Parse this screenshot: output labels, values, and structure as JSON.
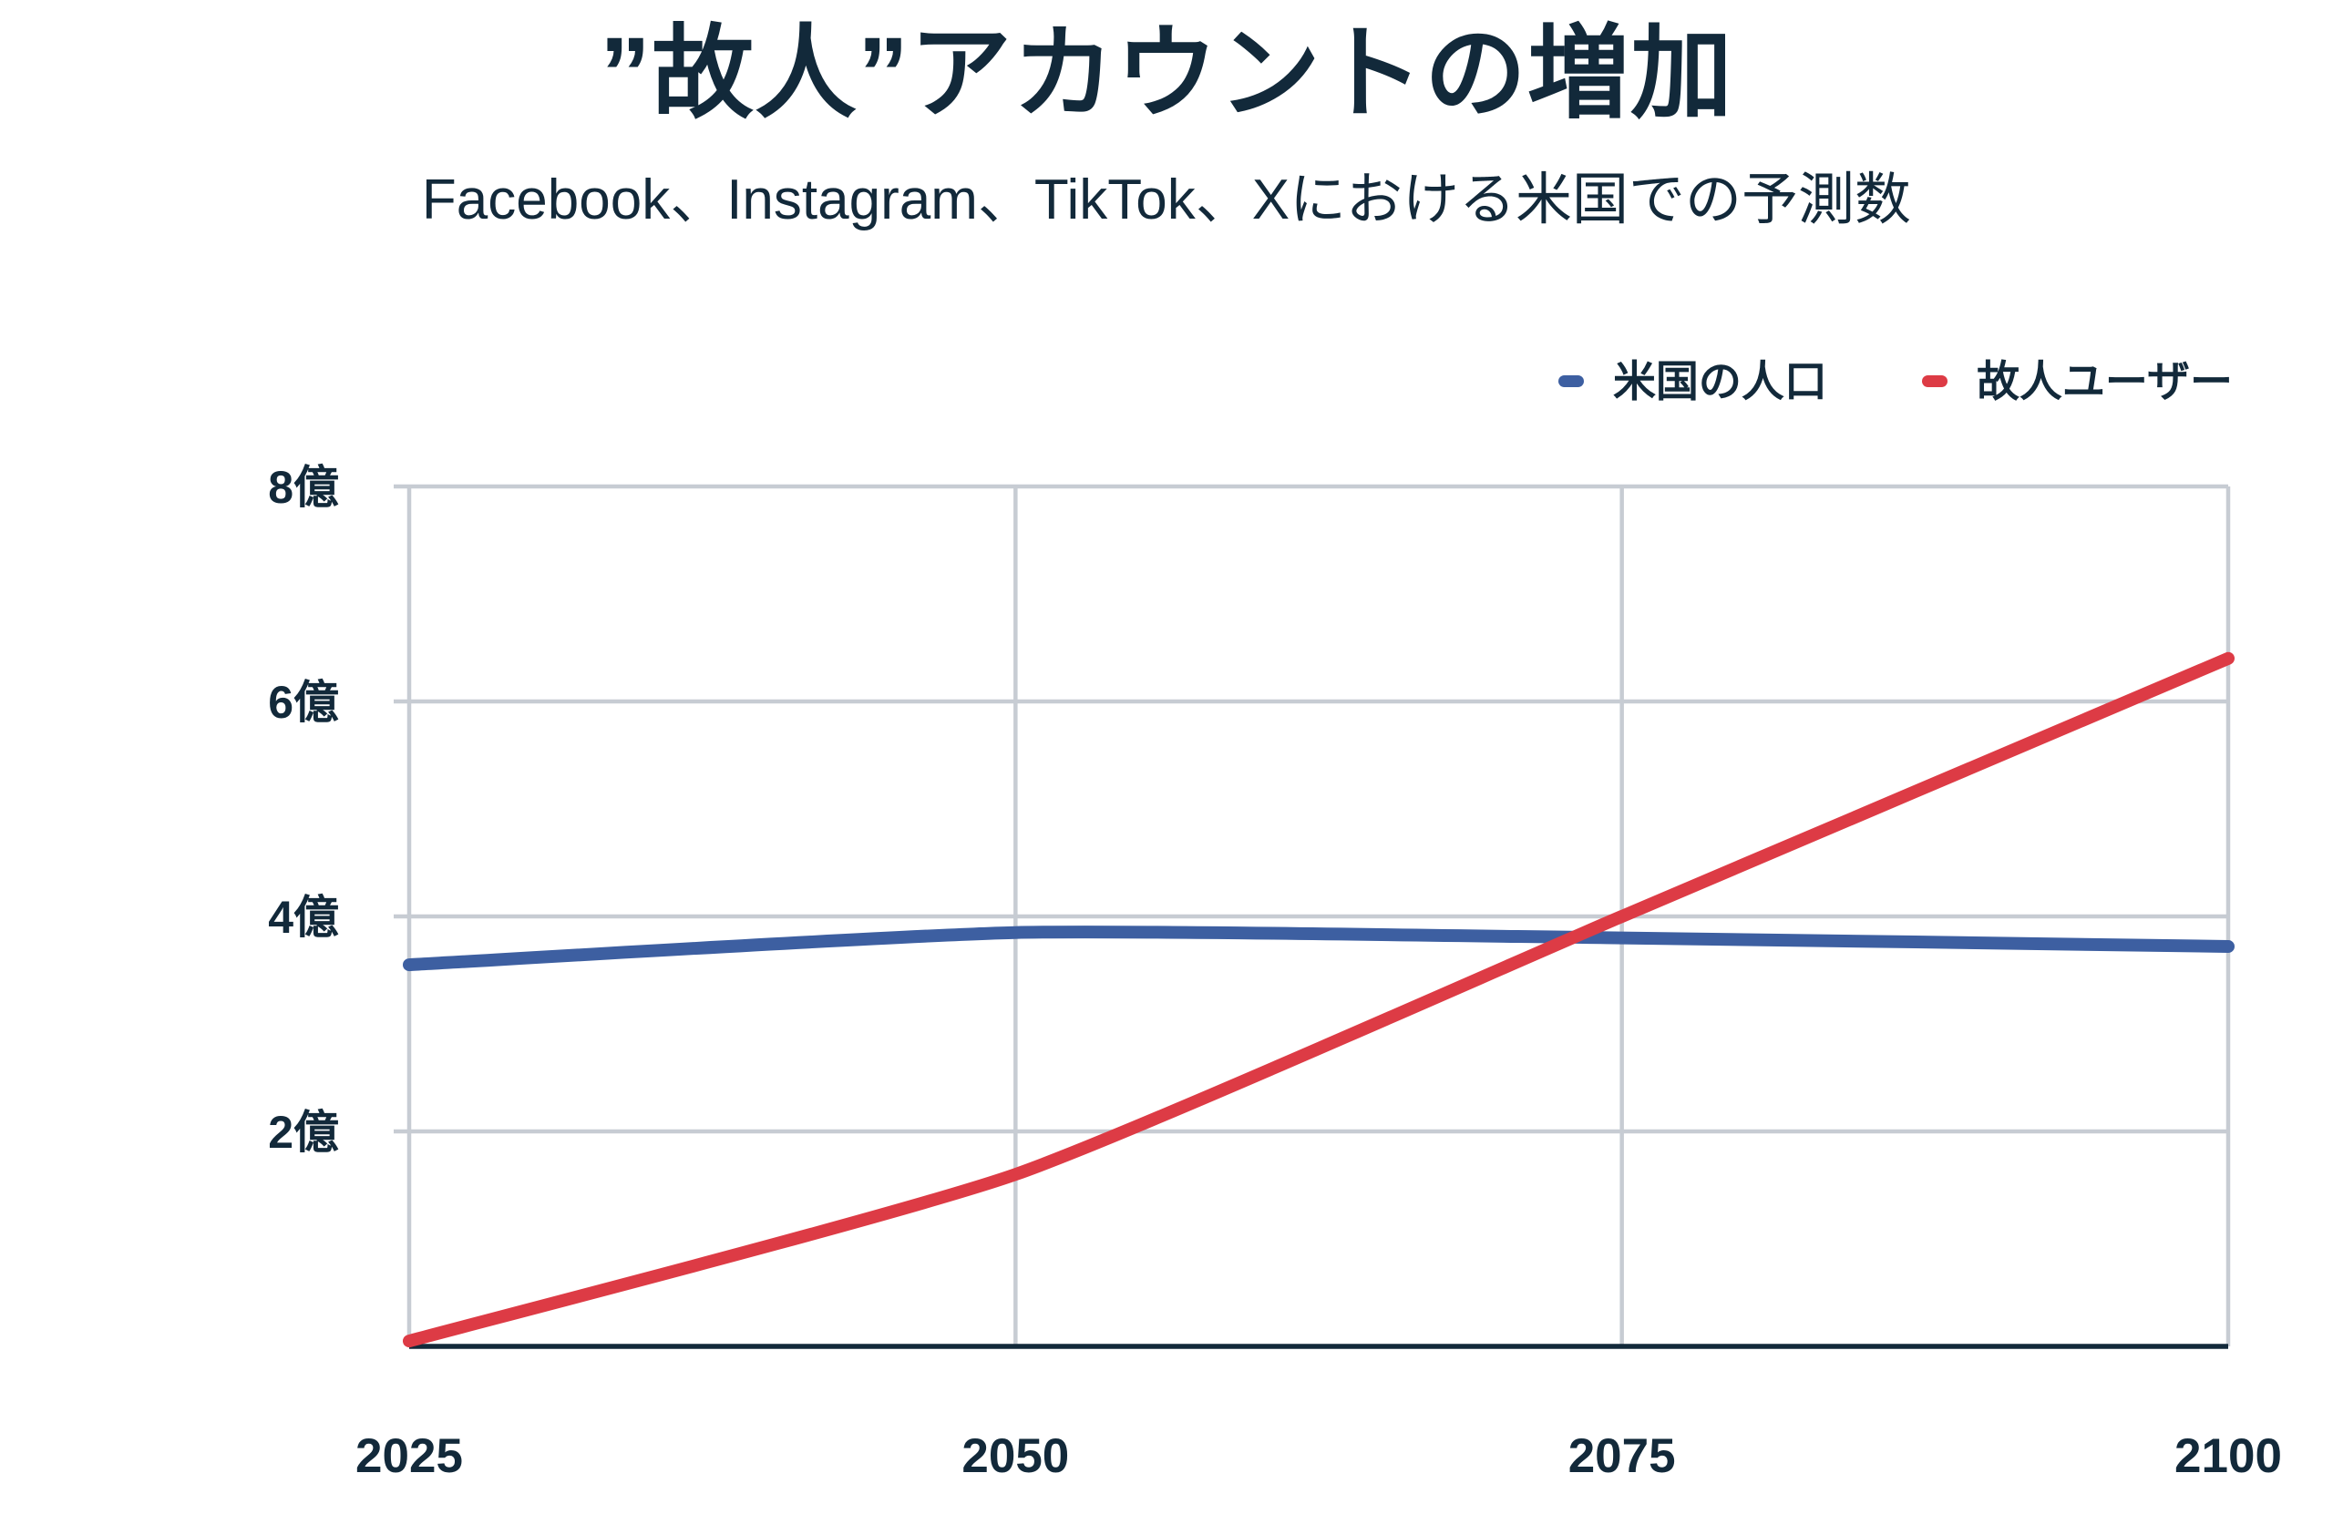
{
  "title": "”故人”アカウントの増加",
  "subtitle": "Facebook、Instagram、TikTok、Xにおける米国での予測数",
  "colors": {
    "text": "#12293a",
    "grid": "#c7ccd3",
    "baseline_axis": "#12293a",
    "us_population_line": "#3d5fa1",
    "deceased_users_line": "#dd3b45",
    "background": "#ffffff"
  },
  "chart_data": {
    "type": "line",
    "x": [
      2025,
      2050,
      2075,
      2100
    ],
    "xlim": [
      2025,
      2100
    ],
    "ylim": [
      0,
      8
    ],
    "unit": "億",
    "series": [
      {
        "name": "米国の人口",
        "color": "#3d5fa1",
        "values": [
          3.55,
          3.85,
          3.8,
          3.72
        ]
      },
      {
        "name": "故人ユーザー",
        "color": "#dd3b45",
        "values": [
          0.05,
          1.6,
          4.0,
          6.4
        ]
      }
    ],
    "xticks": [
      {
        "value": 2025,
        "label": "2025"
      },
      {
        "value": 2050,
        "label": "2050"
      },
      {
        "value": 2075,
        "label": "2075"
      },
      {
        "value": 2100,
        "label": "2100"
      }
    ],
    "yticks": [
      {
        "value": 2,
        "label": "2億"
      },
      {
        "value": 4,
        "label": "4億"
      },
      {
        "value": 6,
        "label": "6億"
      },
      {
        "value": 8,
        "label": "8億"
      }
    ],
    "grid": true,
    "legend_position": "top-right"
  }
}
